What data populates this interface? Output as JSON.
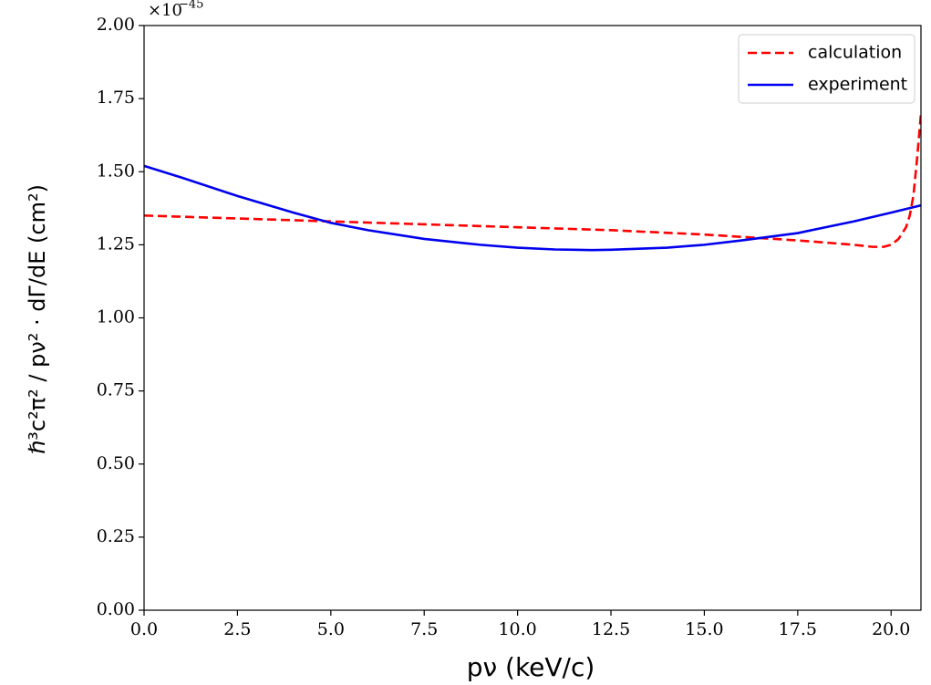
{
  "chart_data": {
    "type": "line",
    "xlabel": "pν (keV/c)",
    "ylabel": "ℏ³c²π² / pν² · dΓ/dE   (cm²)",
    "y_scale_base": "×10",
    "y_scale_exponent": "−45",
    "xlim": [
      0,
      20.8
    ],
    "ylim": [
      0,
      2.0
    ],
    "xticks": [
      {
        "value": 0,
        "label": "0.0"
      },
      2.5,
      {
        "value": 5,
        "label": "5.0"
      },
      7.5,
      {
        "value": 10,
        "label": "10.0"
      },
      12.5,
      {
        "value": 15,
        "label": "15.0"
      },
      17.5,
      {
        "value": 20,
        "label": "20.0"
      }
    ],
    "yticks": [
      {
        "value": 0,
        "label": "0.00"
      },
      {
        "value": 0.25,
        "label": "0.25"
      },
      {
        "value": 0.5,
        "label": "0.50"
      },
      {
        "value": 0.75,
        "label": "0.75"
      },
      {
        "value": 1,
        "label": "1.00"
      },
      {
        "value": 1.25,
        "label": "1.25"
      },
      {
        "value": 1.5,
        "label": "1.50"
      },
      {
        "value": 1.75,
        "label": "1.75"
      },
      {
        "value": 2,
        "label": "2.00"
      }
    ],
    "legend": "upper right",
    "series": [
      {
        "name": "calculation",
        "color": "#ff0000",
        "dash": true,
        "x": [
          0,
          2.5,
          5,
          7.5,
          10,
          12.5,
          15,
          17.5,
          19,
          19.5,
          19.8,
          20,
          20.2,
          20.4,
          20.5,
          20.6,
          20.7,
          20.8
        ],
        "values": [
          1.35,
          1.34,
          1.33,
          1.32,
          1.31,
          1.3,
          1.285,
          1.265,
          1.25,
          1.243,
          1.243,
          1.25,
          1.27,
          1.31,
          1.35,
          1.42,
          1.55,
          1.7
        ]
      },
      {
        "name": "experiment",
        "color": "#0000ee",
        "dash": false,
        "x": [
          0,
          1,
          2.5,
          4,
          5,
          6,
          7.5,
          9,
          10,
          11,
          12,
          12.5,
          14,
          15,
          16,
          17.5,
          19,
          20,
          20.8
        ],
        "values": [
          1.52,
          1.48,
          1.417,
          1.36,
          1.325,
          1.3,
          1.27,
          1.25,
          1.24,
          1.234,
          1.232,
          1.233,
          1.24,
          1.25,
          1.265,
          1.29,
          1.33,
          1.36,
          1.385
        ]
      }
    ]
  }
}
